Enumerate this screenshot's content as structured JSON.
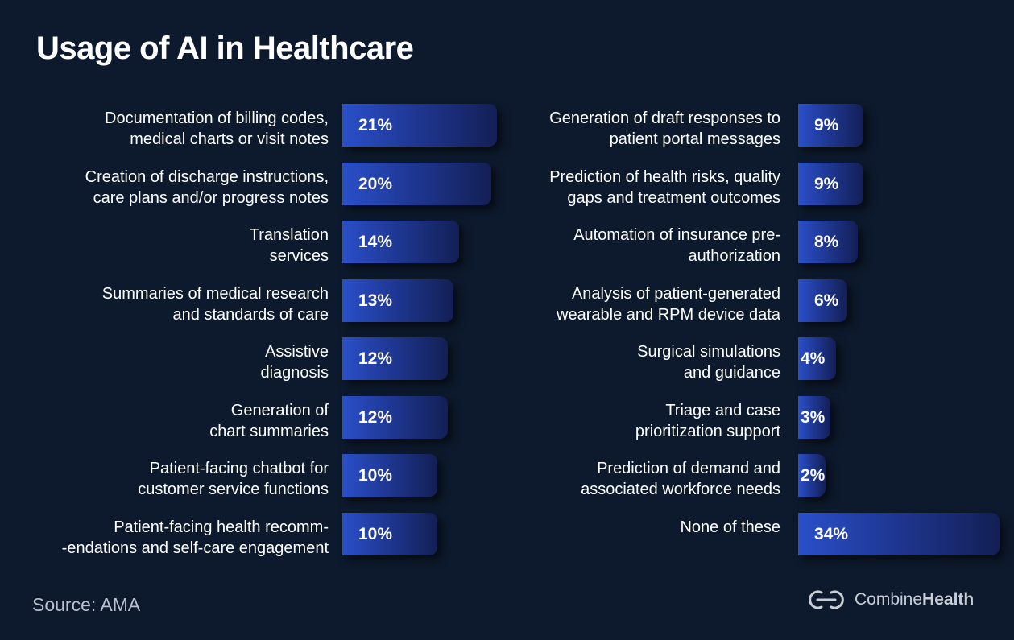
{
  "chart_data": {
    "type": "bar",
    "orientation": "horizontal",
    "title": "Usage of AI in Healthcare",
    "unit": "%",
    "xlim": [
      0,
      34
    ],
    "categories": [
      "Documentation of billing codes,\nmedical charts or visit notes",
      "Creation of discharge instructions,\ncare plans and/or progress notes",
      "Translation\nservices",
      "Summaries of medical research\nand standards of care",
      "Assistive\ndiagnosis",
      "Generation of\nchart summaries",
      "Patient-facing chatbot for\ncustomer service functions",
      "Patient-facing health recomm-\n-endations and self-care engagement",
      "Generation of draft responses to\npatient portal messages",
      "Prediction of health risks, quality\ngaps and treatment outcomes",
      "Automation of insurance pre-\nauthorization",
      "Analysis of patient-generated\nwearable and RPM device data",
      "Surgical simulations\nand guidance",
      "Triage and case\nprioritization support",
      "Prediction of demand and\nassociated workforce needs",
      "None of these"
    ],
    "values": [
      21,
      20,
      14,
      13,
      12,
      12,
      10,
      10,
      9,
      9,
      8,
      6,
      4,
      3,
      2,
      34
    ],
    "value_labels": [
      "21%",
      "20%",
      "14%",
      "13%",
      "12%",
      "12%",
      "10%",
      "10%",
      "9%",
      "9%",
      "8%",
      "6%",
      "4%",
      "3%",
      "2%",
      "34%"
    ]
  },
  "source": "Source: AMA",
  "brand": {
    "name_part1": "Combine",
    "name_part2": "Health",
    "logo_icon": "combinehealth-logo-icon"
  },
  "colors": {
    "background": "#0d1a2d",
    "bar_start": "#2a4fc9",
    "bar_end": "#131f55",
    "text": "#ffffff",
    "muted": "#b8c0cc"
  }
}
